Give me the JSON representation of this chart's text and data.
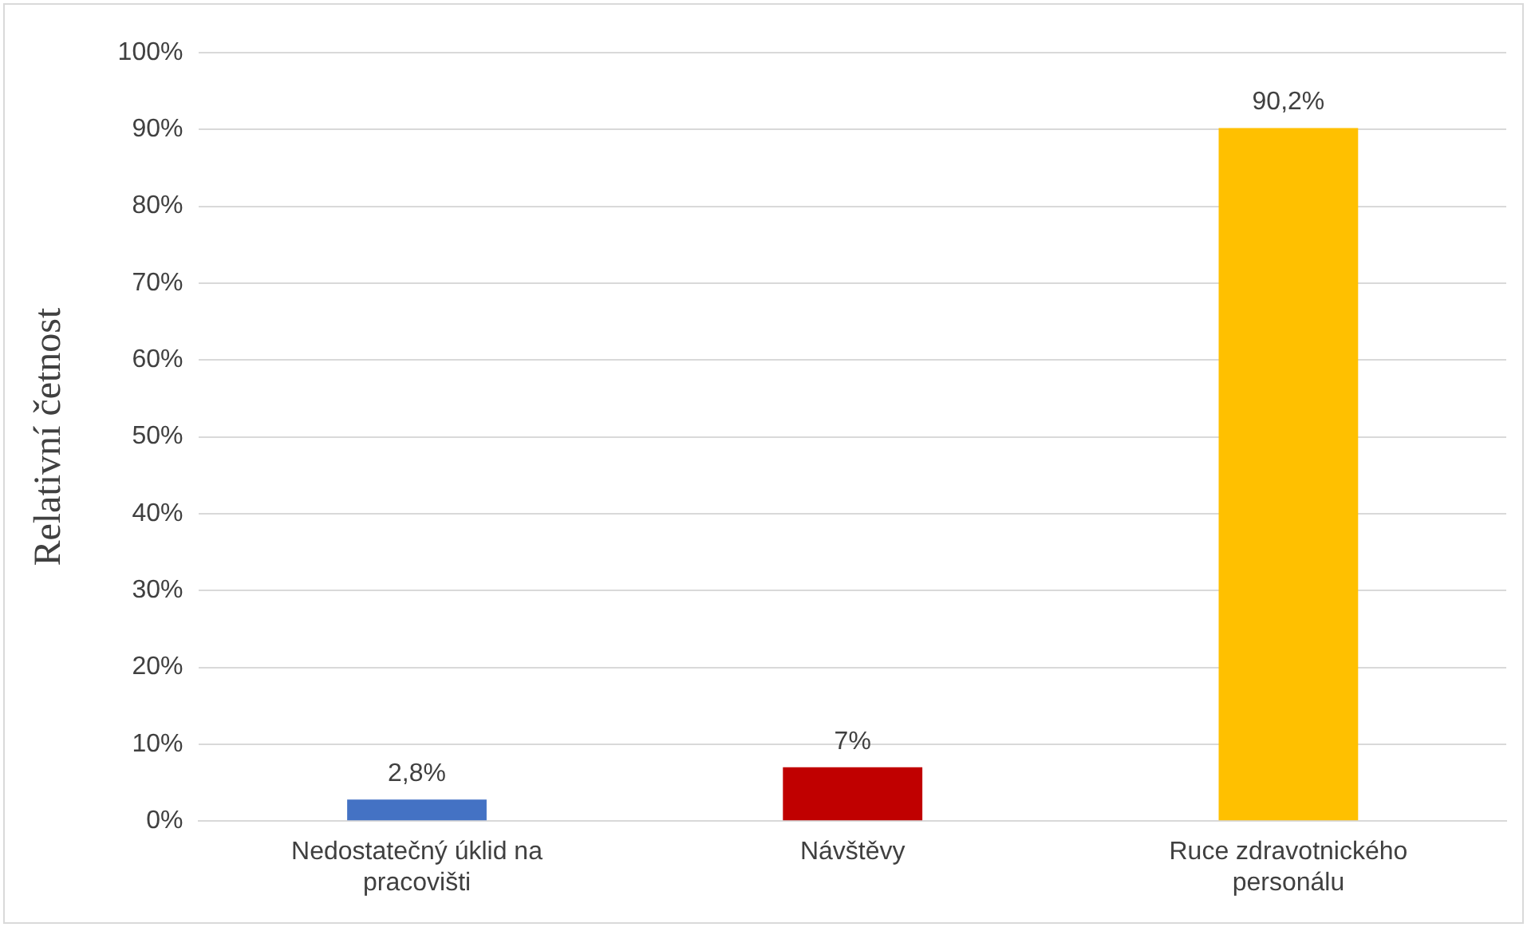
{
  "chart_data": {
    "type": "bar",
    "ylabel": "Relativní četnost",
    "categories": [
      "Nedostatečný úklid na pracovišti",
      "Návštěvy",
      "Ruce zdravotnického personálu"
    ],
    "values": [
      2.8,
      7,
      90.2
    ],
    "colors": [
      "#4472c4",
      "#c00000",
      "#ffc000"
    ],
    "value_labels": [
      "2,8%",
      "7%",
      "90,2%"
    ],
    "ylim": [
      0,
      100
    ],
    "yticks": [
      {
        "value": 0,
        "label": "0%"
      },
      {
        "value": 10,
        "label": "10%"
      },
      {
        "value": 20,
        "label": "20%"
      },
      {
        "value": 30,
        "label": "30%"
      },
      {
        "value": 40,
        "label": "40%"
      },
      {
        "value": 50,
        "label": "50%"
      },
      {
        "value": 60,
        "label": "60%"
      },
      {
        "value": 70,
        "label": "70%"
      },
      {
        "value": 80,
        "label": "80%"
      },
      {
        "value": 90,
        "label": "90%"
      },
      {
        "value": 100,
        "label": "100%"
      }
    ],
    "grid": "y",
    "legend": false
  }
}
